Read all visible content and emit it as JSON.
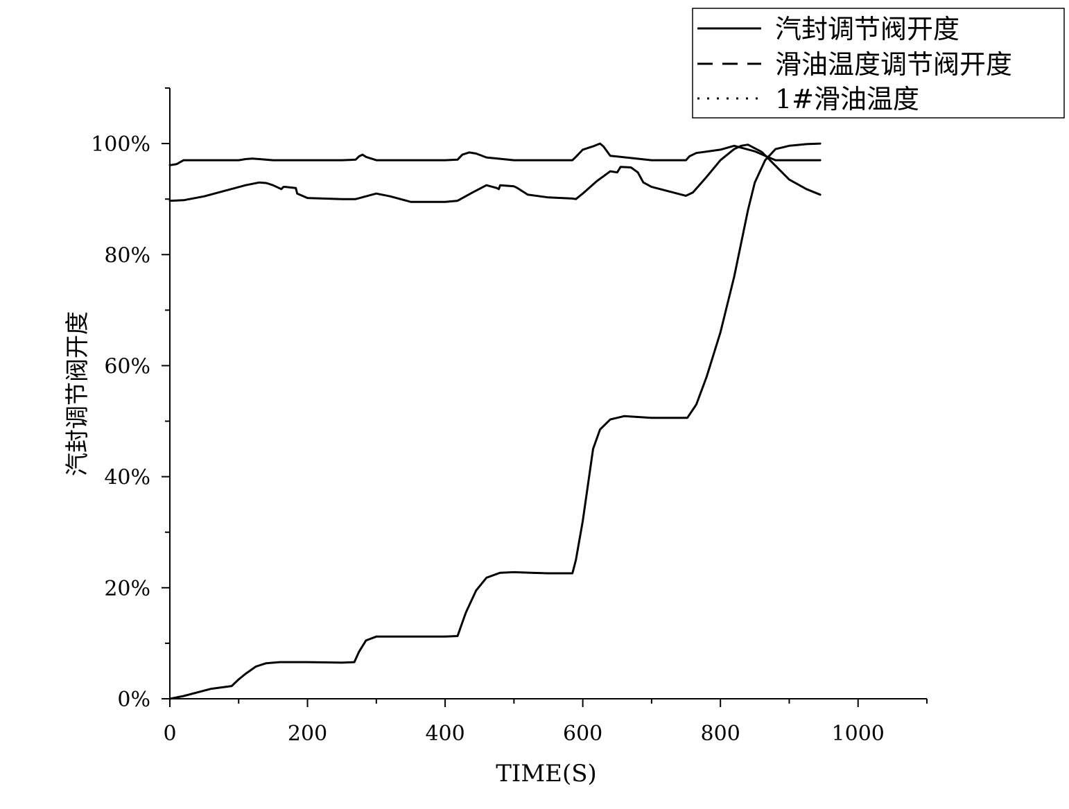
{
  "chart_data": {
    "type": "line",
    "title": "",
    "xlabel": "TIME(S)",
    "ylabel": "汽封调节阀开度",
    "xlim": [
      0,
      1100
    ],
    "ylim": [
      0,
      110
    ],
    "x_ticks": [
      0,
      200,
      400,
      600,
      800,
      1000
    ],
    "x_tick_labels": [
      "0",
      "200",
      "400",
      "600",
      "800",
      "1000"
    ],
    "y_ticks": [
      0,
      20,
      40,
      60,
      80,
      100
    ],
    "y_tick_labels": [
      "0%",
      "20%",
      "40%",
      "60%",
      "80%",
      "100%"
    ],
    "grid": false,
    "legend_position": "top-right",
    "series": [
      {
        "name": "汽封调节阀开度",
        "style": "solid",
        "color": "#000000",
        "x": [
          0,
          20,
          60,
          90,
          100,
          110,
          125,
          140,
          160,
          200,
          250,
          268,
          275,
          285,
          300,
          350,
          400,
          418,
          430,
          445,
          460,
          480,
          500,
          550,
          585,
          590,
          600,
          615,
          625,
          640,
          660,
          700,
          752,
          765,
          780,
          800,
          820,
          840,
          850,
          865,
          880,
          900,
          925,
          945
        ],
        "y": [
          0,
          0.5,
          1.8,
          2.3,
          3.5,
          4.5,
          5.8,
          6.4,
          6.6,
          6.6,
          6.5,
          6.6,
          8.5,
          10.5,
          11.2,
          11.2,
          11.2,
          11.3,
          15.5,
          19.5,
          21.8,
          22.7,
          22.8,
          22.6,
          22.6,
          25,
          32,
          45,
          48.5,
          50.3,
          50.9,
          50.6,
          50.6,
          53,
          58,
          66,
          76,
          88,
          93,
          97,
          99,
          99.6,
          99.9,
          100
        ]
      },
      {
        "name": "滑油温度调节阀开度",
        "style": "dashed",
        "color": "#000000",
        "x": [
          0,
          10,
          20,
          50,
          100,
          110,
          120,
          150,
          200,
          250,
          270,
          275,
          280,
          285,
          300,
          350,
          400,
          418,
          425,
          435,
          445,
          460,
          500,
          550,
          585,
          590,
          600,
          615,
          625,
          630,
          640,
          700,
          750,
          755,
          765,
          800,
          820,
          850,
          865,
          880,
          900,
          945
        ],
        "y": [
          96.1,
          96.3,
          97,
          97,
          97,
          97.2,
          97.3,
          97,
          97,
          97,
          97.1,
          97.7,
          98,
          97.6,
          97,
          97,
          97,
          97.1,
          98,
          98.4,
          98.2,
          97.5,
          97,
          97,
          97,
          97.6,
          98.9,
          99.5,
          100,
          99.5,
          97.8,
          97,
          97,
          97.7,
          98.3,
          98.9,
          99.6,
          98.6,
          97.8,
          97,
          97,
          97
        ]
      },
      {
        "name": "1#滑油温度",
        "style": "dotted",
        "color": "#000000",
        "x": [
          0,
          20,
          50,
          80,
          110,
          130,
          140,
          150,
          162,
          165,
          168,
          183,
          185,
          200,
          250,
          270,
          300,
          320,
          350,
          400,
          418,
          440,
          460,
          475,
          478,
          480,
          500,
          505,
          520,
          550,
          585,
          590,
          600,
          620,
          640,
          650,
          655,
          670,
          680,
          688,
          700,
          750,
          760,
          780,
          800,
          820,
          830,
          840,
          860,
          880,
          900,
          925,
          945
        ],
        "y": [
          89.7,
          89.8,
          90.5,
          91.5,
          92.5,
          93,
          92.9,
          92.5,
          91.8,
          92.2,
          92.2,
          92,
          91,
          90.2,
          90,
          90,
          91,
          90.5,
          89.5,
          89.5,
          89.7,
          91.2,
          92.5,
          92,
          91.8,
          92.5,
          92.3,
          92,
          90.8,
          90.3,
          90.1,
          90,
          91,
          93.2,
          95,
          94.8,
          95.8,
          95.7,
          94.8,
          93,
          92.2,
          90.6,
          91.2,
          94,
          97,
          99,
          99.6,
          99.8,
          98.5,
          96,
          93.5,
          91.8,
          90.8
        ]
      }
    ]
  }
}
